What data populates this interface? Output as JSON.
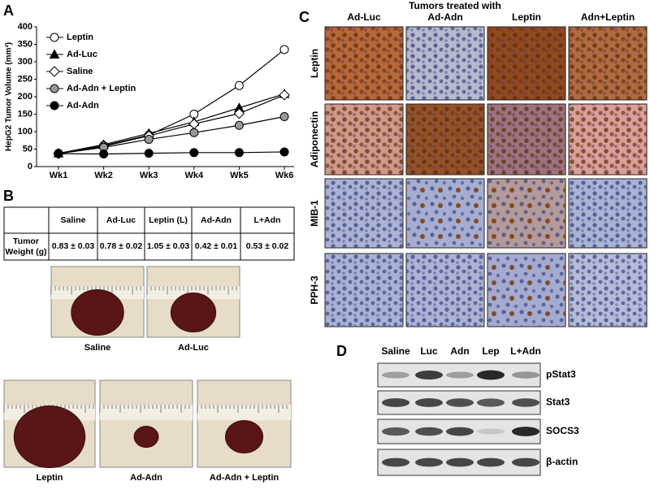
{
  "chart_data": {
    "type": "line",
    "panel_label": "A",
    "y_label": "HepG2 Tumor Volume (mm³)",
    "categories": [
      "Wk1",
      "Wk2",
      "Wk3",
      "Wk4",
      "Wk5",
      "Wk6"
    ],
    "ylim": [
      0,
      400
    ],
    "yticks": [
      0,
      50,
      100,
      150,
      200,
      250,
      300,
      350,
      400
    ],
    "line_color": "#000000",
    "series": [
      {
        "name": "Leptin",
        "marker": "circle",
        "color": "#ffffff",
        "values": [
          38,
          60,
          90,
          150,
          232,
          335
        ]
      },
      {
        "name": "Ad-Luc",
        "marker": "triangle",
        "color": "#000000",
        "values": [
          38,
          63,
          95,
          128,
          168,
          208
        ]
      },
      {
        "name": "Saline",
        "marker": "diamond",
        "color": "#ffffff",
        "values": [
          37,
          58,
          88,
          122,
          152,
          205
        ]
      },
      {
        "name": "Ad-Adn + Leptin",
        "marker": "circle",
        "color": "#999999",
        "values": [
          37,
          55,
          78,
          97,
          118,
          143
        ]
      },
      {
        "name": "Ad-Adn",
        "marker": "circle",
        "color": "#000000",
        "values": [
          37,
          36,
          38,
          40,
          40,
          42
        ]
      }
    ]
  },
  "panel_b": {
    "label": "B",
    "table": {
      "columns": [
        "Saline",
        "Ad-Luc",
        "Leptin (L)",
        "Ad-Adn",
        "L+Adn"
      ],
      "rows": [
        {
          "label": "Tumor Weight (g)",
          "cells": [
            "0.83 ± 0.03",
            "0.78 ± 0.02",
            "1.05 ± 0.03",
            "0.42 ± 0.01",
            "0.53 ± 0.02"
          ]
        }
      ]
    },
    "photos": [
      {
        "caption": "Saline"
      },
      {
        "caption": "Ad-Luc"
      },
      {
        "caption": "Leptin"
      },
      {
        "caption": "Ad-Adn"
      },
      {
        "caption": "Ad-Adn + Leptin"
      }
    ]
  },
  "panel_c": {
    "label": "C",
    "title": "Tumors treated with",
    "columns": [
      "Ad-Luc",
      "Ad-Adn",
      "Leptin",
      "Adn+Leptin"
    ],
    "rows": [
      "Leptin",
      "Adiponectin",
      "MIB-1",
      "PPH-3"
    ]
  },
  "panel_d": {
    "label": "D",
    "lanes": [
      "Saline",
      "Luc",
      "Adn",
      "Lep",
      "L+Adn"
    ],
    "rows": [
      "pStat3",
      "Stat3",
      "SOCS3",
      "β-actin"
    ]
  }
}
